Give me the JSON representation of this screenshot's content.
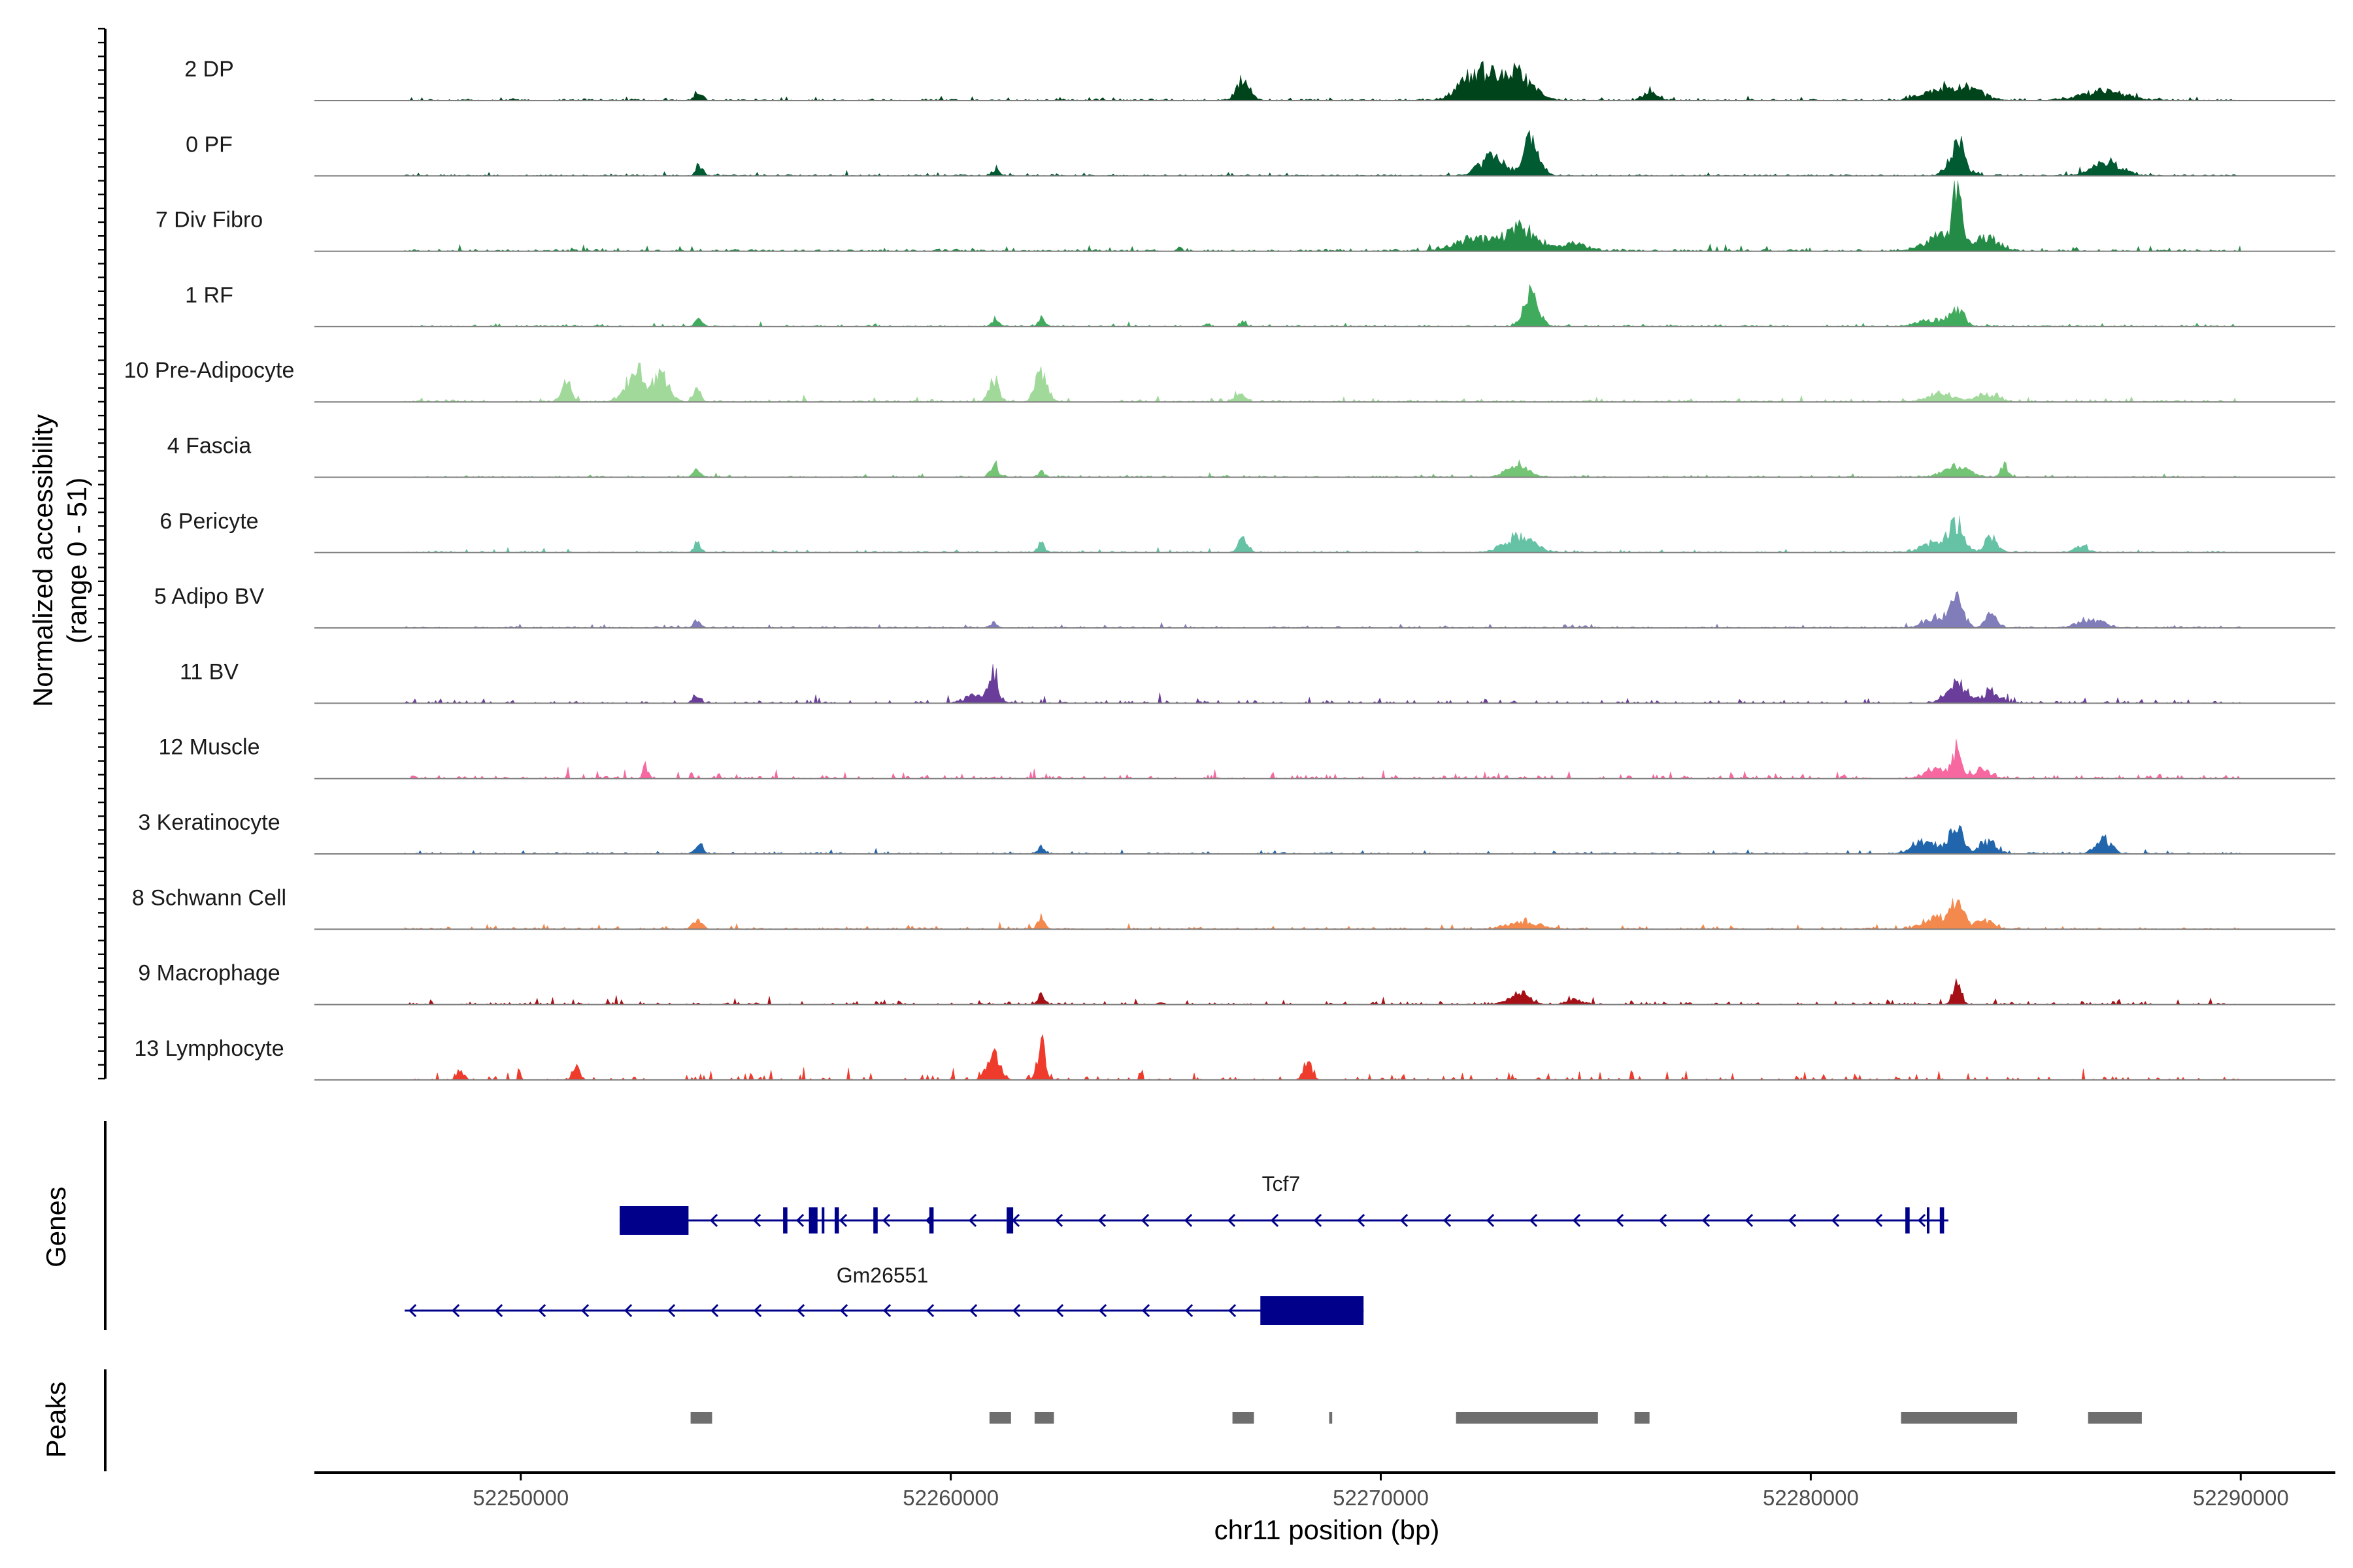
{
  "chart_data": {
    "type": "area",
    "title": "",
    "ylabel": "Normalized accessibility",
    "ylabel_range": "(range 0 - 51)",
    "xlabel": "chr11 position (bp)",
    "chromosome": "chr11",
    "xlim": [
      52245200,
      52292200
    ],
    "ylim": [
      0,
      51
    ],
    "x_ticks": [
      52250000,
      52260000,
      52270000,
      52280000,
      52290000
    ],
    "x_tick_labels": [
      "52250000",
      "52260000",
      "52270000",
      "52280000",
      "52290000"
    ],
    "track_start": 52247300,
    "track_end": 52290000,
    "series": [
      {
        "name": "2 DP",
        "color": "#00441b",
        "noise": 1.2,
        "density": 0.6,
        "peaks": [
          [
            52254150,
            6,
            90
          ],
          [
            52266800,
            15,
            160
          ],
          [
            52272300,
            22,
            400
          ],
          [
            52273200,
            18,
            350
          ],
          [
            52276300,
            8,
            160
          ],
          [
            52283300,
            12,
            500
          ],
          [
            52286800,
            7,
            500
          ]
        ]
      },
      {
        "name": "0 PF",
        "color": "#005a32",
        "noise": 1.0,
        "density": 0.6,
        "peaks": [
          [
            52254150,
            8,
            80
          ],
          [
            52261050,
            6,
            80
          ],
          [
            52272600,
            14,
            300
          ],
          [
            52273500,
            28,
            180
          ],
          [
            52283400,
            26,
            180
          ],
          [
            52286900,
            10,
            350
          ]
        ]
      },
      {
        "name": "7 Div Fibro",
        "color": "#238b45",
        "noise": 1.5,
        "density": 0.55,
        "peaks": [
          [
            52272200,
            10,
            450
          ],
          [
            52273300,
            16,
            350
          ],
          [
            52274500,
            6,
            300
          ],
          [
            52283400,
            42,
            90
          ],
          [
            52283100,
            14,
            380
          ],
          [
            52284100,
            10,
            280
          ]
        ]
      },
      {
        "name": "1 RF",
        "color": "#41ab5d",
        "noise": 1.0,
        "density": 0.55,
        "peaks": [
          [
            52254150,
            7,
            80
          ],
          [
            52261050,
            7,
            80
          ],
          [
            52262100,
            5,
            80
          ],
          [
            52266800,
            4,
            70
          ],
          [
            52273500,
            24,
            170
          ],
          [
            52283400,
            14,
            160
          ],
          [
            52282800,
            5,
            300
          ]
        ]
      },
      {
        "name": "10 Pre-Adipocyte",
        "color": "#a1d99b",
        "noise": 1.6,
        "density": 0.4,
        "peaks": [
          [
            52251050,
            14,
            120
          ],
          [
            52252700,
            22,
            250
          ],
          [
            52253300,
            18,
            180
          ],
          [
            52254100,
            10,
            80
          ],
          [
            52261000,
            16,
            110
          ],
          [
            52262100,
            22,
            130
          ],
          [
            52266700,
            6,
            120
          ],
          [
            52283000,
            7,
            300
          ],
          [
            52284100,
            6,
            250
          ]
        ]
      },
      {
        "name": "4 Fascia",
        "color": "#74c476",
        "noise": 0.9,
        "density": 0.5,
        "peaks": [
          [
            52254100,
            6,
            80
          ],
          [
            52261000,
            10,
            90
          ],
          [
            52262100,
            4,
            80
          ],
          [
            52273200,
            10,
            250
          ],
          [
            52283400,
            8,
            300
          ],
          [
            52284500,
            9,
            90
          ]
        ]
      },
      {
        "name": "6 Pericyte",
        "color": "#66c2a4",
        "noise": 1.0,
        "density": 0.5,
        "peaks": [
          [
            52254100,
            8,
            80
          ],
          [
            52262100,
            8,
            80
          ],
          [
            52266800,
            12,
            110
          ],
          [
            52273200,
            12,
            350
          ],
          [
            52283400,
            20,
            170
          ],
          [
            52282900,
            8,
            300
          ],
          [
            52284200,
            12,
            150
          ],
          [
            52286300,
            5,
            150
          ]
        ]
      },
      {
        "name": "5 Adipo BV",
        "color": "#807dba",
        "noise": 1.0,
        "density": 0.55,
        "peaks": [
          [
            52254100,
            6,
            80
          ],
          [
            52261000,
            4,
            80
          ],
          [
            52283400,
            20,
            160
          ],
          [
            52282900,
            8,
            250
          ],
          [
            52284200,
            10,
            140
          ],
          [
            52286500,
            6,
            300
          ]
        ]
      },
      {
        "name": "11 BV",
        "color": "#6a3d9a",
        "noise": 2.0,
        "density": 0.28,
        "peaks": [
          [
            52261000,
            20,
            90
          ],
          [
            52260700,
            8,
            300
          ],
          [
            52283400,
            14,
            250
          ],
          [
            52284200,
            8,
            200
          ],
          [
            52254100,
            7,
            80
          ]
        ]
      },
      {
        "name": "12 Muscle",
        "color": "#f768a1",
        "noise": 2.3,
        "density": 0.28,
        "peaks": [
          [
            52252900,
            9,
            60
          ],
          [
            52283400,
            20,
            90
          ],
          [
            52283000,
            7,
            300
          ],
          [
            52284000,
            6,
            200
          ]
        ]
      },
      {
        "name": "3 Keratinocyte",
        "color": "#2166ac",
        "noise": 1.0,
        "density": 0.55,
        "peaks": [
          [
            52254150,
            10,
            80
          ],
          [
            52262100,
            4,
            80
          ],
          [
            52283400,
            24,
            150
          ],
          [
            52282700,
            10,
            300
          ],
          [
            52284100,
            10,
            200
          ],
          [
            52286800,
            12,
            180
          ]
        ]
      },
      {
        "name": "8 Schwann Cell",
        "color": "#f4894e",
        "noise": 1.3,
        "density": 0.45,
        "peaks": [
          [
            52254100,
            7,
            100
          ],
          [
            52262100,
            9,
            80
          ],
          [
            52273300,
            6,
            350
          ],
          [
            52283400,
            20,
            140
          ],
          [
            52282900,
            8,
            300
          ],
          [
            52284000,
            6,
            250
          ]
        ]
      },
      {
        "name": "9 Macrophage",
        "color": "#a50f15",
        "noise": 2.0,
        "density": 0.3,
        "peaks": [
          [
            52273200,
            8,
            250
          ],
          [
            52283400,
            16,
            100
          ],
          [
            52262100,
            7,
            80
          ],
          [
            52274500,
            4,
            200
          ]
        ]
      },
      {
        "name": "13 Lymphocyte",
        "color": "#ef3b2c",
        "noise": 3.0,
        "density": 0.16,
        "peaks": [
          [
            52261000,
            20,
            150
          ],
          [
            52262100,
            28,
            90
          ],
          [
            52268300,
            14,
            100
          ],
          [
            52248600,
            8,
            80
          ],
          [
            52251300,
            10,
            80
          ]
        ]
      }
    ],
    "genes": [
      {
        "name": "Tcf7",
        "strand": "-",
        "start": 52252300,
        "end": 52283200,
        "exons": [
          [
            52252300,
            52253900
          ],
          [
            52256100,
            52256200
          ],
          [
            52256700,
            52256900
          ],
          [
            52257000,
            52257050
          ],
          [
            52257300,
            52257400
          ],
          [
            52258200,
            52258300
          ],
          [
            52259500,
            52259600
          ],
          [
            52261300,
            52261450
          ],
          [
            52282200,
            52282300
          ],
          [
            52282700,
            52282750
          ],
          [
            52283000,
            52283100
          ]
        ]
      },
      {
        "name": "Gm26551",
        "strand": "-",
        "start": 52247300,
        "end": 52269600,
        "exons": [
          [
            52267200,
            52269600
          ]
        ]
      }
    ],
    "peaks": [
      [
        52253950,
        52254450
      ],
      [
        52260900,
        52261400
      ],
      [
        52261950,
        52262400
      ],
      [
        52266550,
        52267050
      ],
      [
        52268800,
        52268870
      ],
      [
        52271750,
        52275050
      ],
      [
        52275900,
        52276250
      ],
      [
        52282100,
        52284800
      ],
      [
        52286450,
        52287700
      ]
    ],
    "panel_labels": {
      "genes": "Genes",
      "peaks": "Peaks"
    }
  },
  "colors": {
    "axis": "#000000",
    "baseline": "#7f7f7f",
    "gene": "#00008b",
    "peak": "#6e6e6e",
    "tick_text": "#4d4d4d"
  }
}
